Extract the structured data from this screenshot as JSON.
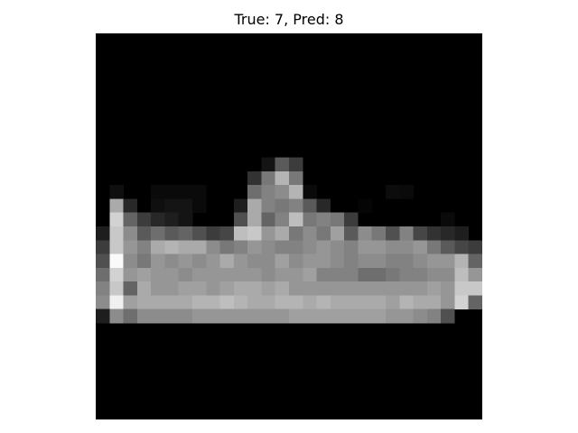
{
  "title": "True: 7, Pred: 8",
  "image": {
    "rows": 28,
    "cols": 28,
    "pixels": [
      [
        0,
        0,
        0,
        0,
        0,
        0,
        0,
        0,
        0,
        0,
        0,
        0,
        0,
        0,
        0,
        0,
        0,
        0,
        0,
        0,
        0,
        0,
        0,
        0,
        0,
        0,
        0,
        0
      ],
      [
        0,
        0,
        0,
        0,
        0,
        0,
        0,
        0,
        0,
        0,
        0,
        0,
        0,
        0,
        0,
        0,
        0,
        0,
        0,
        0,
        0,
        0,
        0,
        0,
        0,
        0,
        0,
        0
      ],
      [
        0,
        0,
        0,
        0,
        0,
        0,
        0,
        0,
        0,
        0,
        0,
        0,
        0,
        0,
        0,
        0,
        0,
        0,
        0,
        0,
        0,
        0,
        0,
        0,
        0,
        0,
        0,
        0
      ],
      [
        0,
        0,
        0,
        0,
        0,
        0,
        0,
        0,
        0,
        0,
        0,
        0,
        0,
        0,
        0,
        0,
        0,
        0,
        0,
        0,
        0,
        0,
        0,
        0,
        0,
        0,
        0,
        0
      ],
      [
        0,
        0,
        0,
        0,
        0,
        0,
        0,
        0,
        0,
        0,
        0,
        0,
        0,
        0,
        0,
        0,
        0,
        0,
        0,
        0,
        0,
        0,
        0,
        0,
        0,
        0,
        0,
        0
      ],
      [
        0,
        0,
        0,
        0,
        0,
        0,
        0,
        0,
        0,
        0,
        0,
        0,
        0,
        0,
        0,
        0,
        0,
        0,
        0,
        0,
        0,
        0,
        0,
        0,
        0,
        0,
        0,
        0
      ],
      [
        0,
        0,
        0,
        0,
        0,
        0,
        0,
        0,
        0,
        0,
        0,
        0,
        0,
        0,
        0,
        0,
        0,
        0,
        0,
        0,
        0,
        0,
        0,
        0,
        0,
        0,
        0,
        0
      ],
      [
        0,
        0,
        0,
        0,
        0,
        0,
        0,
        0,
        0,
        0,
        0,
        0,
        0,
        0,
        0,
        0,
        0,
        0,
        0,
        0,
        0,
        0,
        0,
        0,
        0,
        0,
        0,
        0
      ],
      [
        0,
        0,
        0,
        0,
        0,
        0,
        0,
        0,
        0,
        0,
        0,
        0,
        0,
        0,
        0,
        0,
        0,
        0,
        0,
        0,
        0,
        0,
        0,
        0,
        0,
        0,
        0,
        0
      ],
      [
        0,
        0,
        0,
        0,
        0,
        0,
        0,
        0,
        0,
        0,
        0,
        0,
        20,
        90,
        60,
        0,
        0,
        0,
        0,
        0,
        0,
        0,
        0,
        0,
        0,
        0,
        0,
        0
      ],
      [
        0,
        0,
        0,
        0,
        0,
        0,
        0,
        0,
        0,
        0,
        0,
        50,
        120,
        180,
        120,
        0,
        0,
        0,
        0,
        0,
        0,
        0,
        0,
        0,
        0,
        0,
        0,
        0
      ],
      [
        0,
        15,
        0,
        0,
        10,
        10,
        10,
        10,
        0,
        0,
        0,
        110,
        130,
        140,
        180,
        10,
        0,
        0,
        0,
        0,
        0,
        12,
        10,
        0,
        0,
        0,
        0,
        0
      ],
      [
        0,
        170,
        40,
        0,
        15,
        20,
        20,
        10,
        0,
        0,
        30,
        170,
        130,
        120,
        130,
        90,
        40,
        0,
        0,
        5,
        0,
        0,
        0,
        0,
        0,
        0,
        0,
        0
      ],
      [
        0,
        210,
        100,
        60,
        40,
        30,
        20,
        0,
        0,
        0,
        80,
        170,
        100,
        130,
        190,
        120,
        130,
        120,
        60,
        0,
        0,
        0,
        0,
        0,
        0,
        10,
        0,
        0
      ],
      [
        30,
        200,
        140,
        90,
        110,
        90,
        100,
        80,
        60,
        70,
        190,
        200,
        150,
        170,
        120,
        140,
        120,
        160,
        90,
        140,
        120,
        80,
        130,
        70,
        50,
        40,
        30,
        0
      ],
      [
        60,
        200,
        150,
        130,
        170,
        180,
        170,
        170,
        140,
        120,
        130,
        150,
        140,
        130,
        130,
        140,
        150,
        140,
        130,
        150,
        150,
        140,
        140,
        150,
        120,
        90,
        70,
        60
      ],
      [
        80,
        250,
        140,
        120,
        150,
        140,
        150,
        140,
        150,
        170,
        150,
        140,
        140,
        160,
        140,
        150,
        150,
        140,
        130,
        140,
        140,
        130,
        130,
        140,
        150,
        150,
        180,
        100
      ],
      [
        110,
        210,
        150,
        160,
        150,
        150,
        140,
        150,
        150,
        150,
        150,
        150,
        140,
        150,
        150,
        160,
        130,
        130,
        130,
        110,
        110,
        120,
        130,
        130,
        140,
        140,
        190,
        150
      ],
      [
        130,
        200,
        100,
        170,
        150,
        150,
        160,
        160,
        150,
        160,
        170,
        170,
        160,
        170,
        150,
        150,
        150,
        150,
        150,
        150,
        150,
        150,
        150,
        150,
        160,
        150,
        200,
        200
      ],
      [
        140,
        240,
        160,
        170,
        170,
        170,
        170,
        180,
        180,
        190,
        180,
        170,
        170,
        180,
        180,
        170,
        180,
        170,
        170,
        170,
        170,
        160,
        180,
        170,
        170,
        150,
        210,
        100
      ],
      [
        30,
        140,
        110,
        140,
        140,
        140,
        140,
        150,
        150,
        150,
        150,
        150,
        150,
        150,
        160,
        160,
        160,
        160,
        160,
        160,
        160,
        150,
        150,
        140,
        130,
        80,
        0,
        0
      ],
      [
        0,
        0,
        0,
        0,
        0,
        0,
        0,
        0,
        0,
        0,
        0,
        0,
        0,
        0,
        0,
        0,
        0,
        0,
        0,
        0,
        0,
        0,
        0,
        0,
        0,
        0,
        0,
        0
      ],
      [
        0,
        0,
        0,
        0,
        0,
        0,
        0,
        0,
        0,
        0,
        0,
        0,
        0,
        0,
        0,
        0,
        0,
        0,
        0,
        0,
        0,
        0,
        0,
        0,
        0,
        0,
        0,
        0
      ],
      [
        0,
        0,
        0,
        0,
        0,
        0,
        0,
        0,
        0,
        0,
        0,
        0,
        0,
        0,
        0,
        0,
        0,
        0,
        0,
        0,
        0,
        0,
        0,
        0,
        0,
        0,
        0,
        0
      ],
      [
        0,
        0,
        0,
        0,
        0,
        0,
        0,
        0,
        0,
        0,
        0,
        0,
        0,
        0,
        0,
        0,
        0,
        0,
        0,
        0,
        0,
        0,
        0,
        0,
        0,
        0,
        0,
        0
      ],
      [
        0,
        0,
        0,
        0,
        0,
        0,
        0,
        0,
        0,
        0,
        0,
        0,
        0,
        0,
        0,
        0,
        0,
        0,
        0,
        0,
        0,
        0,
        0,
        0,
        0,
        0,
        0,
        0
      ],
      [
        0,
        0,
        0,
        0,
        0,
        0,
        0,
        0,
        0,
        0,
        0,
        0,
        0,
        0,
        0,
        0,
        0,
        0,
        0,
        0,
        0,
        0,
        0,
        0,
        0,
        0,
        0,
        0
      ],
      [
        0,
        0,
        0,
        0,
        0,
        0,
        0,
        0,
        0,
        0,
        0,
        0,
        0,
        0,
        0,
        0,
        0,
        0,
        0,
        0,
        0,
        0,
        0,
        0,
        0,
        0,
        0,
        0
      ]
    ]
  }
}
